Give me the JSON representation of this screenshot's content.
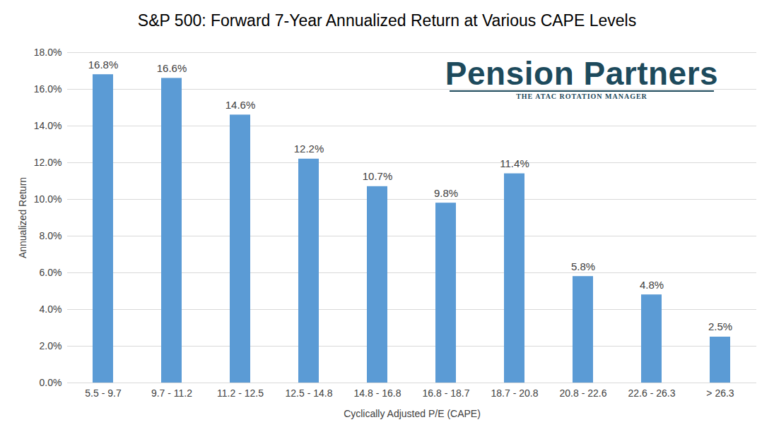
{
  "chart_data": {
    "type": "bar",
    "title": "S&P 500: Forward 7-Year Annualized Return at Various CAPE Levels",
    "x_label": "Cyclically Adjusted P/E (CAPE)",
    "y_label": "Annualized Return",
    "categories": [
      "5.5 - 9.7",
      "9.7 - 11.2",
      "11.2 - 12.5",
      "12.5 - 14.8",
      "14.8 - 16.8",
      "16.8 - 18.7",
      "18.7 - 20.8",
      "20.8 - 22.6",
      "22.6 - 26.3",
      "> 26.3"
    ],
    "values": [
      16.8,
      16.6,
      14.6,
      12.2,
      10.7,
      9.8,
      11.4,
      5.8,
      4.8,
      2.5
    ],
    "value_labels": [
      "16.8%",
      "16.6%",
      "14.6%",
      "12.2%",
      "10.7%",
      "9.8%",
      "11.4%",
      "5.8%",
      "4.8%",
      "2.5%"
    ],
    "data_labels": true,
    "color": "#5b9bd5",
    "ylim": [
      0,
      18
    ],
    "yticks": [
      {
        "value": 0,
        "label": "0.0%"
      },
      {
        "value": 2,
        "label": "2.0%"
      },
      {
        "value": 4,
        "label": "4.0%"
      },
      {
        "value": 6,
        "label": "6.0%"
      },
      {
        "value": 8,
        "label": "8.0%"
      },
      {
        "value": 10,
        "label": "10.0%"
      },
      {
        "value": 12,
        "label": "12.0%"
      },
      {
        "value": 14,
        "label": "14.0%"
      },
      {
        "value": 16,
        "label": "16.0%"
      },
      {
        "value": 18,
        "label": "18.0%"
      }
    ],
    "grid": true,
    "annotations": [
      "Pension Partners",
      "THE ATAC ROTATION MANAGER"
    ]
  }
}
